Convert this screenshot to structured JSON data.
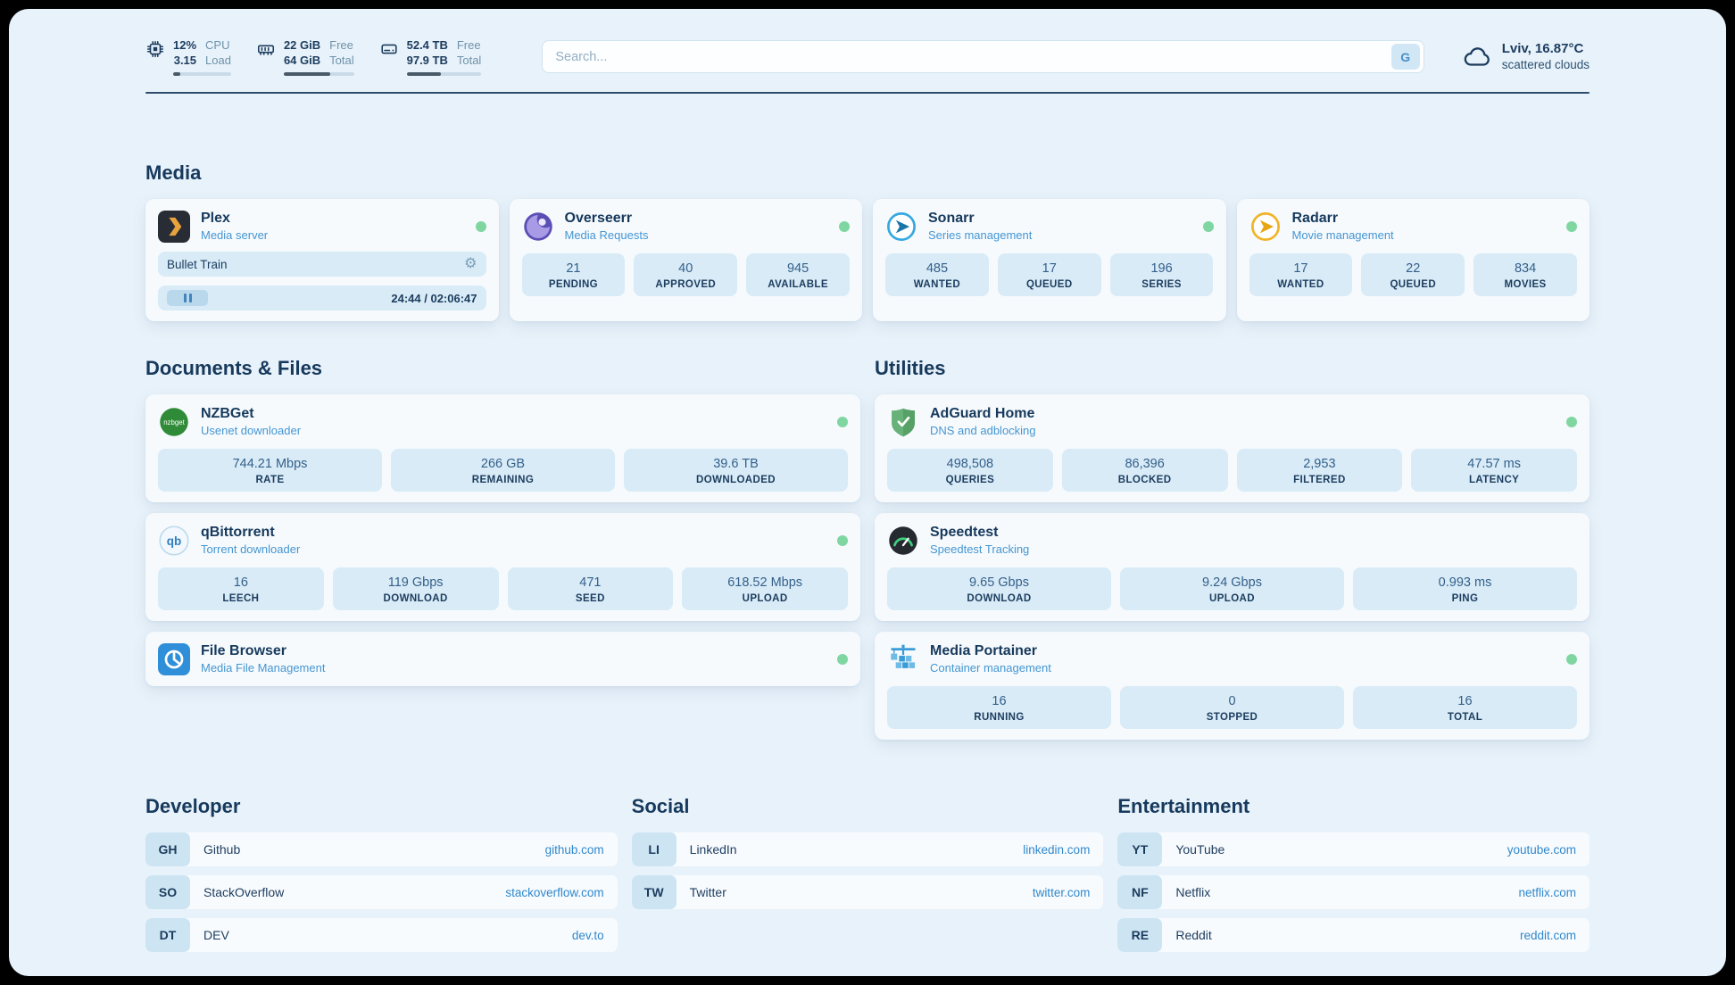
{
  "colors": {
    "accent": "#2f88cc",
    "status_green": "#7fd6a0",
    "background": "#e8f2fa"
  },
  "topbar": {
    "cpu": {
      "value": "12%",
      "load": "3.15",
      "label1": "CPU",
      "label2": "Load",
      "bar_percent": 12
    },
    "ram": {
      "free": "22 GiB",
      "total": "64 GiB",
      "label1": "Free",
      "label2": "Total",
      "bar_percent": 66
    },
    "disk": {
      "free": "52.4 TB",
      "total": "97.9 TB",
      "label1": "Free",
      "label2": "Total",
      "bar_percent": 46
    },
    "search": {
      "placeholder": "Search...",
      "engine_button": "G"
    },
    "weather": {
      "location": "Lviv, 16.87°C",
      "condition": "scattered clouds"
    }
  },
  "media": {
    "title": "Media",
    "plex": {
      "name": "Plex",
      "subtitle": "Media server",
      "now_playing": "Bullet Train",
      "time": "24:44 / 02:06:47"
    },
    "cards": [
      {
        "name": "Overseerr",
        "subtitle": "Media Requests",
        "stats": [
          {
            "value": "21",
            "label": "PENDING"
          },
          {
            "value": "40",
            "label": "APPROVED"
          },
          {
            "value": "945",
            "label": "AVAILABLE"
          }
        ]
      },
      {
        "name": "Sonarr",
        "subtitle": "Series management",
        "stats": [
          {
            "value": "485",
            "label": "WANTED"
          },
          {
            "value": "17",
            "label": "QUEUED"
          },
          {
            "value": "196",
            "label": "SERIES"
          }
        ]
      },
      {
        "name": "Radarr",
        "subtitle": "Movie management",
        "stats": [
          {
            "value": "17",
            "label": "WANTED"
          },
          {
            "value": "22",
            "label": "QUEUED"
          },
          {
            "value": "834",
            "label": "MOVIES"
          }
        ]
      }
    ]
  },
  "documents": {
    "title": "Documents & Files",
    "cards": [
      {
        "name": "NZBGet",
        "subtitle": "Usenet downloader",
        "icon_text": "nzbget",
        "stats": [
          {
            "value": "744.21 Mbps",
            "label": "RATE"
          },
          {
            "value": "266 GB",
            "label": "REMAINING"
          },
          {
            "value": "39.6 TB",
            "label": "DOWNLOADED"
          }
        ]
      },
      {
        "name": "qBittorrent",
        "subtitle": "Torrent downloader",
        "icon_text": "qb",
        "stats": [
          {
            "value": "16",
            "label": "LEECH"
          },
          {
            "value": "119 Gbps",
            "label": "DOWNLOAD"
          },
          {
            "value": "471",
            "label": "SEED"
          },
          {
            "value": "618.52 Mbps",
            "label": "UPLOAD"
          }
        ]
      },
      {
        "name": "File Browser",
        "subtitle": "Media File Management",
        "stats": []
      }
    ]
  },
  "utilities": {
    "title": "Utilities",
    "cards": [
      {
        "name": "AdGuard Home",
        "subtitle": "DNS and adblocking",
        "stats": [
          {
            "value": "498,508",
            "label": "QUERIES"
          },
          {
            "value": "86,396",
            "label": "BLOCKED"
          },
          {
            "value": "2,953",
            "label": "FILTERED"
          },
          {
            "value": "47.57 ms",
            "label": "LATENCY"
          }
        ]
      },
      {
        "name": "Speedtest",
        "subtitle": "Speedtest Tracking",
        "stats": [
          {
            "value": "9.65 Gbps",
            "label": "DOWNLOAD"
          },
          {
            "value": "9.24 Gbps",
            "label": "UPLOAD"
          },
          {
            "value": "0.993 ms",
            "label": "PING"
          }
        ]
      },
      {
        "name": "Media Portainer",
        "subtitle": "Container management",
        "stats": [
          {
            "value": "16",
            "label": "RUNNING"
          },
          {
            "value": "0",
            "label": "STOPPED"
          },
          {
            "value": "16",
            "label": "TOTAL"
          }
        ]
      }
    ]
  },
  "bookmarks": {
    "developer": {
      "title": "Developer",
      "items": [
        {
          "abbr": "GH",
          "name": "Github",
          "url": "github.com"
        },
        {
          "abbr": "SO",
          "name": "StackOverflow",
          "url": "stackoverflow.com"
        },
        {
          "abbr": "DT",
          "name": "DEV",
          "url": "dev.to"
        }
      ]
    },
    "social": {
      "title": "Social",
      "items": [
        {
          "abbr": "LI",
          "name": "LinkedIn",
          "url": "linkedin.com"
        },
        {
          "abbr": "TW",
          "name": "Twitter",
          "url": "twitter.com"
        }
      ]
    },
    "entertainment": {
      "title": "Entertainment",
      "items": [
        {
          "abbr": "YT",
          "name": "YouTube",
          "url": "youtube.com"
        },
        {
          "abbr": "NF",
          "name": "Netflix",
          "url": "netflix.com"
        },
        {
          "abbr": "RE",
          "name": "Reddit",
          "url": "reddit.com"
        }
      ]
    }
  }
}
